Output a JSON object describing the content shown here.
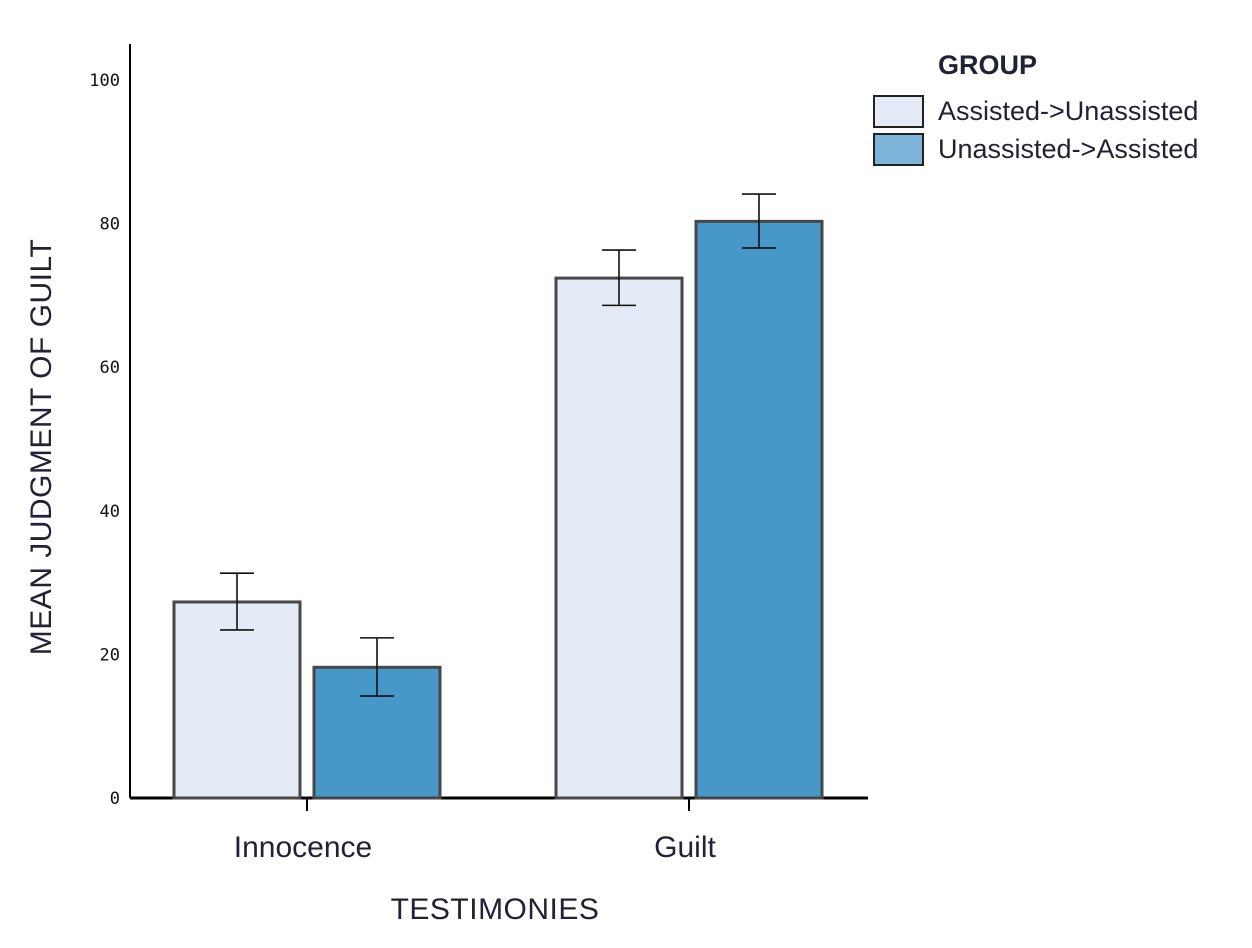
{
  "chart_data": {
    "type": "bar",
    "title": "",
    "xlabel": "TESTIMONIES",
    "ylabel": "MEAN JUDGMENT OF GUILT",
    "categories": [
      "Innocence",
      "Guilt"
    ],
    "ylim": [
      0,
      105
    ],
    "yticks": [
      0,
      20,
      40,
      60,
      80,
      100
    ],
    "grid": false,
    "legend_title": "GROUP",
    "legend_position": "top-right",
    "series": [
      {
        "name": "Assisted->Unassisted",
        "color": "#e4ebf6",
        "values": [
          27.3,
          72.4
        ],
        "error_low": [
          23.4,
          68.6
        ],
        "error_high": [
          31.3,
          76.3
        ]
      },
      {
        "name": "Unassisted->Assisted",
        "color": "#4897c9",
        "legend_color": "#7cb5d9",
        "values": [
          18.2,
          80.3
        ],
        "error_low": [
          14.2,
          76.6
        ],
        "error_high": [
          22.3,
          84.1
        ]
      }
    ]
  }
}
